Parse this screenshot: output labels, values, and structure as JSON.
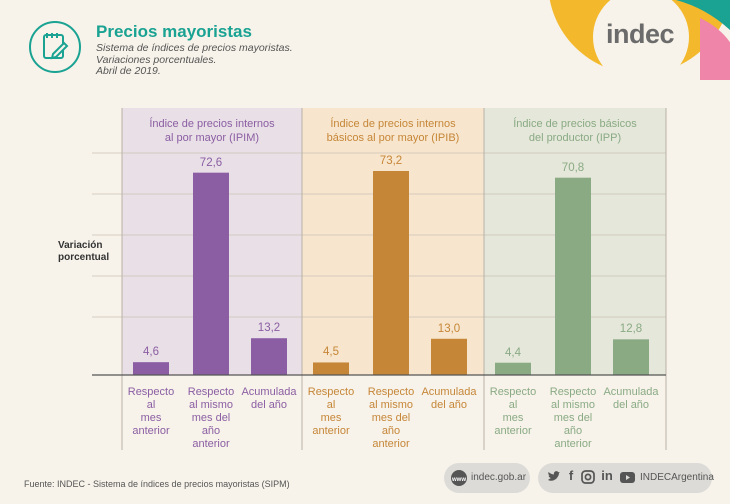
{
  "header": {
    "title": "Precios mayoristas",
    "subtitle_lines": [
      "Sistema de índices de precios mayoristas.",
      "Variaciones porcentuales.",
      "Abril de 2019."
    ]
  },
  "brand": {
    "logo_text": "indec",
    "colors": {
      "teal": "#1aa293",
      "yellow": "#f3b82c",
      "pink": "#ef85a8"
    }
  },
  "chart_data": {
    "type": "bar",
    "ylabel": "Variación porcentual",
    "ylim": [
      0,
      80
    ],
    "categories": [
      "Respecto al mes anterior",
      "Respecto al mismo mes del año anterior",
      "Acumulada del año"
    ],
    "panels": [
      {
        "title": [
          "Índice de precios internos",
          "al por mayor (IPIM)"
        ],
        "values": [
          4.6,
          72.6,
          13.2
        ],
        "value_labels": [
          "4,6",
          "72,6",
          "13,2"
        ],
        "color": "#8b5ea3",
        "bg": "#e9dfe7"
      },
      {
        "title": [
          "Índice de precios internos",
          "básicos al por mayor (IPIB)"
        ],
        "values": [
          4.5,
          73.2,
          13.0
        ],
        "value_labels": [
          "4,5",
          "73,2",
          "13,0"
        ],
        "color": "#c68638",
        "bg": "#f7e6cd"
      },
      {
        "title": [
          "Índice de precios básicos",
          "del productor (IPP)"
        ],
        "values": [
          4.4,
          70.8,
          12.8
        ],
        "value_labels": [
          "4,4",
          "70,8",
          "12,8"
        ],
        "color": "#8aaa84",
        "bg": "#e4e7d9"
      }
    ],
    "category_labels": [
      [
        "Respecto",
        "al",
        "mes",
        "anterior"
      ],
      [
        "Respecto",
        "al mismo",
        "mes del",
        "año",
        "anterior"
      ],
      [
        "Acumulada",
        "del año"
      ]
    ]
  },
  "footer": {
    "source": "Fuente: INDEC - Sistema de índices de precios mayoristas (SIPM)",
    "website": "indec.gob.ar",
    "social_handle": "INDECArgentina",
    "social_icons": [
      "twitter-icon",
      "facebook-icon",
      "instagram-icon",
      "linkedin-icon",
      "youtube-icon"
    ]
  }
}
